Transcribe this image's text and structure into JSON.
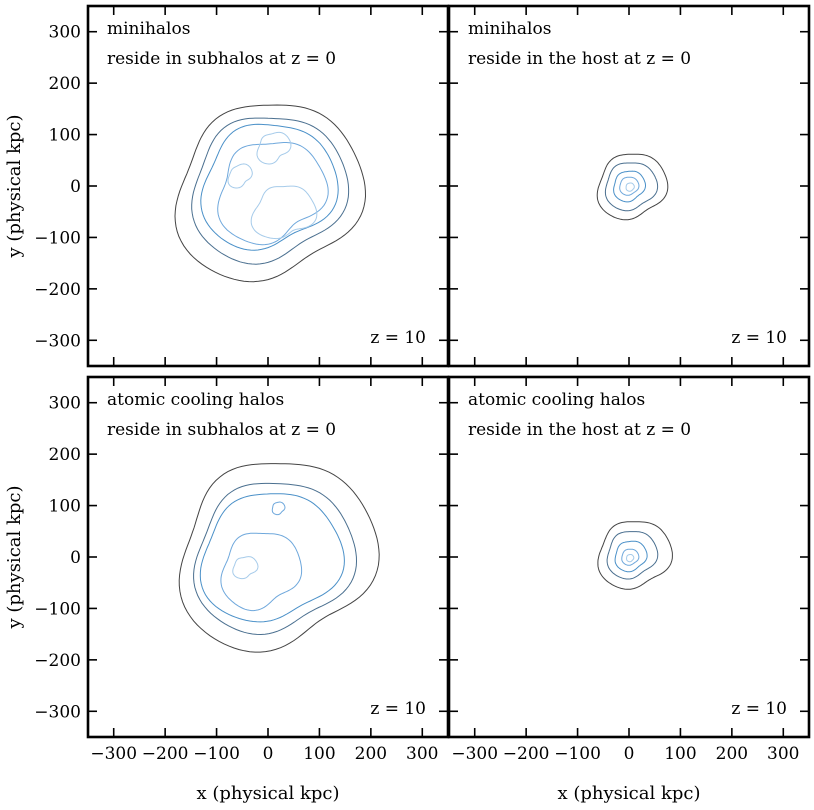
{
  "chart_data": [
    {
      "type": "contour",
      "title": "",
      "xlabel": "",
      "ylabel": "y (physical kpc)",
      "xlim": [
        -350,
        350
      ],
      "ylim": [
        -350,
        350
      ],
      "grid": false,
      "annotation_lines": [
        "minihalos",
        "reside in subhalos at z  =  0"
      ],
      "redshift_label": "z  =  10",
      "x_ticks": [
        -300,
        -200,
        -100,
        0,
        100,
        200,
        300
      ],
      "y_ticks": [
        -300,
        -200,
        -100,
        0,
        100,
        200,
        300
      ],
      "x_tick_labels": [],
      "y_tick_labels": [
        "−300",
        "−200",
        "−100",
        "0",
        "100",
        "200",
        "300"
      ],
      "contours": [
        {
          "color": "#444444",
          "cx": 0,
          "cy": -10,
          "r": 175,
          "w": [
            0.08,
            0.05,
            0.03
          ],
          "p": [
            0.4,
            1.9,
            3.0
          ]
        },
        {
          "color": "#4a6f8f",
          "cx": 0,
          "cy": -5,
          "r": 145,
          "w": [
            0.07,
            0.05,
            0.03
          ],
          "p": [
            0.5,
            1.7,
            3.2
          ]
        },
        {
          "color": "#4a90c8",
          "cx": 0,
          "cy": 0,
          "r": 125,
          "w": [
            0.08,
            0.06,
            0.03
          ],
          "p": [
            0.6,
            2.0,
            3.5
          ]
        },
        {
          "color": "#6fa8dc",
          "cx": 5,
          "cy": -10,
          "r": 100,
          "w": [
            0.1,
            0.07,
            0.05
          ],
          "p": [
            0.3,
            1.5,
            2.7
          ]
        },
        {
          "color": "#a6cbea",
          "cx": 30,
          "cy": -50,
          "r": 55,
          "w": [
            0.15,
            0.08,
            0.05
          ],
          "p": [
            0.8,
            2.2,
            3.1
          ]
        },
        {
          "color": "#a6cbea",
          "cx": 10,
          "cy": 75,
          "r": 30,
          "w": [
            0.18,
            0.08,
            0.04
          ],
          "p": [
            0.2,
            1.2,
            2.4
          ]
        },
        {
          "color": "#a6cbea",
          "cx": -55,
          "cy": 20,
          "r": 22,
          "w": [
            0.2,
            0.05,
            0.03
          ],
          "p": [
            0.0,
            1.0,
            2.0
          ]
        }
      ]
    },
    {
      "type": "contour",
      "title": "",
      "xlabel": "",
      "ylabel": "",
      "xlim": [
        -350,
        350
      ],
      "ylim": [
        -350,
        350
      ],
      "grid": false,
      "annotation_lines": [
        "minihalos",
        "reside in the host at z  =  0"
      ],
      "redshift_label": "z  =  10",
      "x_ticks": [
        -300,
        -200,
        -100,
        0,
        100,
        200,
        300
      ],
      "y_ticks": [
        -300,
        -200,
        -100,
        0,
        100,
        200,
        300
      ],
      "x_tick_labels": [],
      "y_tick_labels": [],
      "contours": [
        {
          "color": "#444444",
          "cx": 5,
          "cy": 0,
          "r": 65,
          "w": [
            0.08,
            0.05,
            0.03
          ],
          "p": [
            0.4,
            1.8,
            3.0
          ]
        },
        {
          "color": "#4a6f8f",
          "cx": 3,
          "cy": 0,
          "r": 48,
          "w": [
            0.07,
            0.05,
            0.03
          ],
          "p": [
            0.6,
            1.6,
            2.9
          ]
        },
        {
          "color": "#4a90c8",
          "cx": 0,
          "cy": 0,
          "r": 30,
          "w": [
            0.07,
            0.04,
            0.03
          ],
          "p": [
            0.2,
            1.3,
            2.6
          ]
        },
        {
          "color": "#6fa8dc",
          "cx": 0,
          "cy": 0,
          "r": 18,
          "w": [
            0.06,
            0.04,
            0.02
          ],
          "p": [
            0.5,
            1.5,
            2.8
          ]
        },
        {
          "color": "#a6cbea",
          "cx": 2,
          "cy": -2,
          "r": 8,
          "w": [
            0.05,
            0.03,
            0.02
          ],
          "p": [
            0.0,
            1.0,
            2.0
          ]
        }
      ]
    },
    {
      "type": "contour",
      "title": "",
      "xlabel": "x (physical kpc)",
      "ylabel": "y (physical kpc)",
      "xlim": [
        -350,
        350
      ],
      "ylim": [
        -350,
        350
      ],
      "grid": false,
      "annotation_lines": [
        "atomic cooling halos",
        "reside in subhalos at z  =  0"
      ],
      "redshift_label": "z  =  10",
      "x_ticks": [
        -300,
        -200,
        -100,
        0,
        100,
        200,
        300
      ],
      "y_ticks": [
        -300,
        -200,
        -100,
        0,
        100,
        200,
        300
      ],
      "x_tick_labels": [
        "−300",
        "−200",
        "−100",
        "0",
        "100",
        "200",
        "300"
      ],
      "y_tick_labels": [
        "−300",
        "−200",
        "−100",
        "0",
        "100",
        "200",
        "300"
      ],
      "contours": [
        {
          "color": "#444444",
          "cx": 15,
          "cy": 5,
          "r": 185,
          "w": [
            0.08,
            0.06,
            0.03
          ],
          "p": [
            0.3,
            1.7,
            3.0
          ]
        },
        {
          "color": "#4a6f8f",
          "cx": 10,
          "cy": 0,
          "r": 150,
          "w": [
            0.07,
            0.05,
            0.03
          ],
          "p": [
            0.5,
            1.9,
            3.2
          ]
        },
        {
          "color": "#4a90c8",
          "cx": 5,
          "cy": 0,
          "r": 130,
          "w": [
            0.08,
            0.05,
            0.03
          ],
          "p": [
            0.7,
            2.1,
            2.9
          ]
        },
        {
          "color": "#6fa8dc",
          "cx": -15,
          "cy": -25,
          "r": 75,
          "w": [
            0.09,
            0.06,
            0.04
          ],
          "p": [
            0.2,
            1.6,
            3.3
          ]
        },
        {
          "color": "#6fa8dc",
          "cx": 20,
          "cy": 95,
          "r": 12,
          "w": [
            0.1,
            0.05,
            0.03
          ],
          "p": [
            0.0,
            1.0,
            2.0
          ]
        },
        {
          "color": "#a6cbea",
          "cx": -45,
          "cy": -20,
          "r": 22,
          "w": [
            0.15,
            0.06,
            0.04
          ],
          "p": [
            0.5,
            1.4,
            2.5
          ]
        }
      ]
    },
    {
      "type": "contour",
      "title": "",
      "xlabel": "x (physical kpc)",
      "ylabel": "",
      "xlim": [
        -350,
        350
      ],
      "ylim": [
        -350,
        350
      ],
      "grid": false,
      "annotation_lines": [
        "atomic cooling halos",
        "reside in the host at z  =  0"
      ],
      "redshift_label": "z  =  10",
      "x_ticks": [
        -300,
        -200,
        -100,
        0,
        100,
        200,
        300
      ],
      "y_ticks": [
        -300,
        -200,
        -100,
        0,
        100,
        200,
        300
      ],
      "x_tick_labels": [
        "−300",
        "−200",
        "−100",
        "0",
        "100",
        "200",
        "300"
      ],
      "y_tick_labels": [],
      "contours": [
        {
          "color": "#444444",
          "cx": 10,
          "cy": 5,
          "r": 68,
          "w": [
            0.08,
            0.05,
            0.03
          ],
          "p": [
            0.6,
            1.8,
            3.1
          ]
        },
        {
          "color": "#4a6f8f",
          "cx": 5,
          "cy": 5,
          "r": 47,
          "w": [
            0.07,
            0.05,
            0.03
          ],
          "p": [
            0.4,
            1.6,
            2.9
          ]
        },
        {
          "color": "#4a90c8",
          "cx": 3,
          "cy": 2,
          "r": 30,
          "w": [
            0.07,
            0.04,
            0.03
          ],
          "p": [
            0.3,
            1.3,
            2.6
          ]
        },
        {
          "color": "#6fa8dc",
          "cx": 2,
          "cy": 0,
          "r": 16,
          "w": [
            0.06,
            0.04,
            0.02
          ],
          "p": [
            0.5,
            1.5,
            2.8
          ]
        },
        {
          "color": "#a6cbea",
          "cx": 2,
          "cy": -2,
          "r": 7,
          "w": [
            0.05,
            0.03,
            0.02
          ],
          "p": [
            0.0,
            1.0,
            2.0
          ]
        }
      ]
    }
  ]
}
